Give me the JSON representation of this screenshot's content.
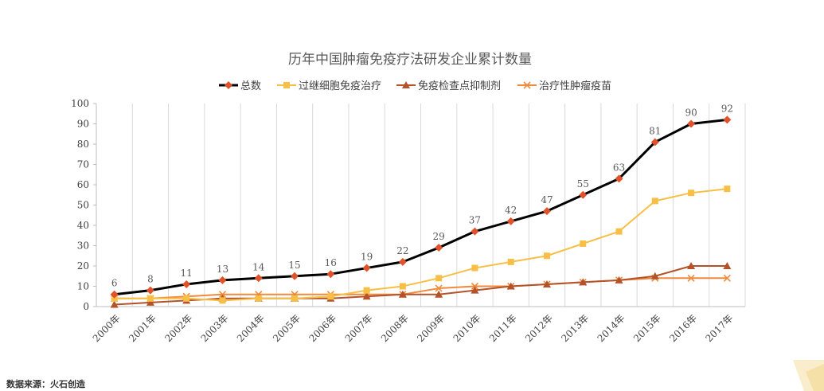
{
  "source_text": "数据来源：火石创造",
  "chart_data": {
    "type": "line",
    "title": "历年中国肿瘤免疫疗法研发企业累计数量",
    "xlabel": "",
    "ylabel": "",
    "ylim": [
      0,
      100
    ],
    "yticks": [
      0,
      10,
      20,
      30,
      40,
      50,
      60,
      70,
      80,
      90,
      100
    ],
    "grid": "vertical",
    "legend_position": "top",
    "categories": [
      "2000年",
      "2001年",
      "2002年",
      "2003年",
      "2004年",
      "2005年",
      "2006年",
      "2007年",
      "2008年",
      "2009年",
      "2010年",
      "2011年",
      "2012年",
      "2013年",
      "2014年",
      "2015年",
      "2016年",
      "2017年"
    ],
    "series": [
      {
        "name": "总数",
        "color": "#000000",
        "marker": "diamond",
        "marker_color": "#e0522a",
        "show_labels": true,
        "values": [
          6,
          8,
          11,
          13,
          14,
          15,
          16,
          19,
          22,
          29,
          37,
          42,
          47,
          55,
          63,
          81,
          90,
          92
        ]
      },
      {
        "name": "过继细胞免疫治疗",
        "color": "#f7bf45",
        "marker": "square",
        "show_labels": false,
        "values": [
          4,
          4,
          4,
          3,
          4,
          4,
          5,
          8,
          10,
          14,
          19,
          22,
          25,
          31,
          37,
          52,
          56,
          58
        ]
      },
      {
        "name": "免疫检查点抑制剂",
        "color": "#b4532a",
        "marker": "triangle",
        "show_labels": false,
        "values": [
          1,
          2,
          3,
          4,
          4,
          4,
          4,
          5,
          6,
          6,
          8,
          10,
          11,
          12,
          13,
          15,
          20,
          20
        ]
      },
      {
        "name": "治疗性肿瘤疫苗",
        "color": "#f08a3c",
        "marker": "x",
        "show_labels": false,
        "values": [
          4,
          4,
          5,
          6,
          6,
          6,
          6,
          6,
          6,
          9,
          10,
          10,
          11,
          12,
          13,
          14,
          14,
          14
        ]
      }
    ]
  }
}
